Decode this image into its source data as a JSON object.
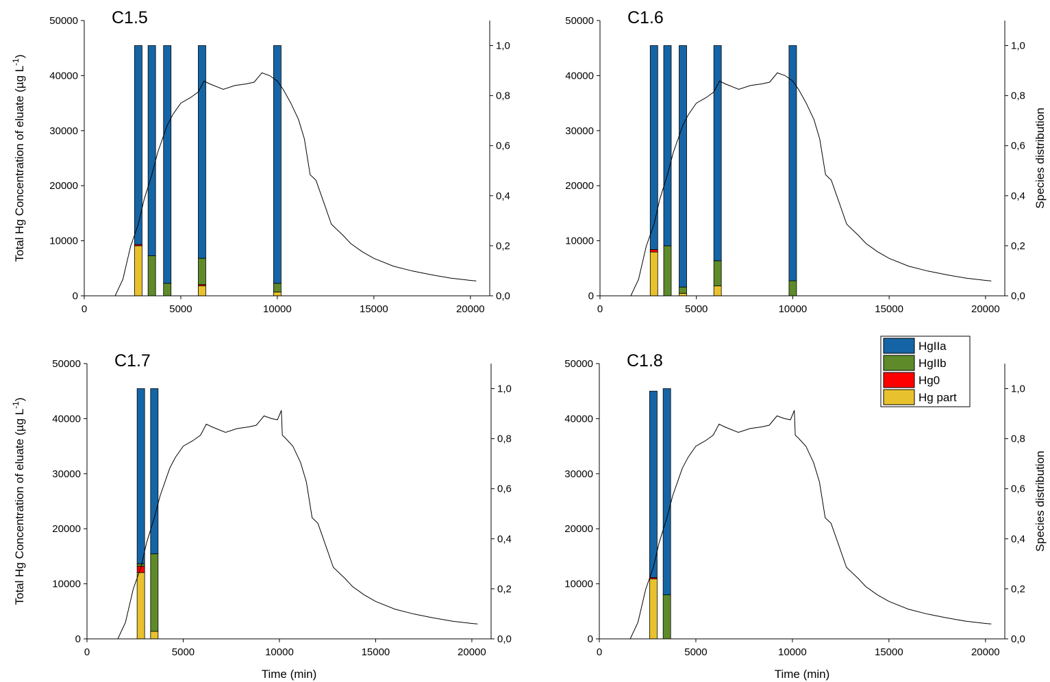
{
  "figure": {
    "legend": {
      "placement": "top-right of lower-right panel",
      "items": [
        {
          "label": "HgIIa",
          "color": "#1565A6"
        },
        {
          "label": "HgIIb",
          "color": "#5E8A2A"
        },
        {
          "label": "Hg0",
          "color": "#FF0000"
        },
        {
          "label": "Hg part",
          "color": "#E8C12E"
        }
      ]
    }
  },
  "chart_data": [
    {
      "type": "bar+line",
      "title": "C1.5",
      "xlabel": "",
      "ylabel": "Total Hg Concentration of eluate (µg L-1)",
      "ylabel_right": "",
      "show_left_label": true,
      "show_right_label": false,
      "show_xlabel": false,
      "xlim": [
        0,
        21000
      ],
      "ylim": [
        0,
        50000
      ],
      "y2lim": [
        0,
        1.1
      ],
      "x_ticks": [
        0,
        5000,
        10000,
        15000,
        20000
      ],
      "y_ticks": [
        0,
        10000,
        20000,
        30000,
        40000,
        50000
      ],
      "y2_ticks": [
        "0,0",
        "0,2",
        "0,4",
        "0,6",
        "0,8",
        "1,0"
      ],
      "line": {
        "x": [
          1600,
          2000,
          2400,
          2800,
          3100,
          3500,
          3800,
          4300,
          4600,
          5000,
          5500,
          5900,
          6200,
          6500,
          7200,
          7800,
          8400,
          8800,
          9200,
          9600,
          10000,
          10100,
          10300,
          10700,
          11100,
          11400,
          11700,
          12000,
          12400,
          12800,
          13400,
          13800,
          14400,
          15000,
          16000,
          17000,
          18000,
          19000,
          20000,
          20300
        ],
        "y": [
          0,
          3000,
          9000,
          13000,
          17500,
          22000,
          26000,
          31000,
          33000,
          35000,
          36000,
          37000,
          39000,
          38500,
          37500,
          38200,
          38500,
          38800,
          40500,
          40000,
          39000,
          38500,
          37500,
          35000,
          32000,
          28500,
          22000,
          21000,
          17000,
          13000,
          11000,
          9500,
          8000,
          6800,
          5400,
          4500,
          3800,
          3200,
          2800,
          2700
        ]
      },
      "bars": [
        {
          "x": 2800,
          "HgIIa": 0.795,
          "HgIIb": 0.0,
          "Hg0": 0.005,
          "Hg_part": 0.2
        },
        {
          "x": 3500,
          "HgIIa": 0.84,
          "HgIIb": 0.16,
          "Hg0": 0.0,
          "Hg_part": 0.0
        },
        {
          "x": 4300,
          "HgIIa": 0.95,
          "HgIIb": 0.05,
          "Hg0": 0.0,
          "Hg_part": 0.0
        },
        {
          "x": 6100,
          "HgIIa": 0.85,
          "HgIIb": 0.105,
          "Hg0": 0.005,
          "Hg_part": 0.04
        },
        {
          "x": 10000,
          "HgIIa": 0.95,
          "HgIIb": 0.035,
          "Hg0": 0.0,
          "Hg_part": 0.015
        }
      ]
    },
    {
      "type": "bar+line",
      "title": "C1.6",
      "xlabel": "",
      "ylabel": "",
      "ylabel_right": "Species distribution",
      "show_left_label": false,
      "show_right_label": true,
      "show_xlabel": false,
      "xlim": [
        0,
        21000
      ],
      "ylim": [
        0,
        50000
      ],
      "y2lim": [
        0,
        1.1
      ],
      "x_ticks": [
        0,
        5000,
        10000,
        15000,
        20000
      ],
      "y_ticks": [
        0,
        10000,
        20000,
        30000,
        40000,
        50000
      ],
      "y2_ticks": [
        "0,0",
        "0,2",
        "0,4",
        "0,6",
        "0,8",
        "1,0"
      ],
      "line": {
        "x": [
          1600,
          2000,
          2400,
          2800,
          3100,
          3500,
          3800,
          4300,
          4600,
          5000,
          5500,
          5900,
          6200,
          6500,
          7200,
          7800,
          8400,
          8800,
          9200,
          9600,
          10000,
          10100,
          10300,
          10700,
          11100,
          11400,
          11700,
          12000,
          12400,
          12800,
          13400,
          13800,
          14400,
          15000,
          16000,
          17000,
          18000,
          19000,
          20000,
          20300
        ],
        "y": [
          0,
          3000,
          9000,
          13000,
          17500,
          22000,
          26000,
          31000,
          33000,
          35000,
          36000,
          37000,
          39000,
          38500,
          37500,
          38200,
          38500,
          38800,
          40500,
          40000,
          39000,
          38500,
          37500,
          35000,
          32000,
          28500,
          22000,
          21000,
          17000,
          13000,
          11000,
          9500,
          8000,
          6800,
          5400,
          4500,
          3800,
          3200,
          2800,
          2700
        ]
      },
      "bars": [
        {
          "x": 2800,
          "HgIIa": 0.815,
          "HgIIb": 0.0,
          "Hg0": 0.01,
          "Hg_part": 0.175
        },
        {
          "x": 3500,
          "HgIIa": 0.8,
          "HgIIb": 0.2,
          "Hg0": 0.0,
          "Hg_part": 0.0
        },
        {
          "x": 4300,
          "HgIIa": 0.965,
          "HgIIb": 0.025,
          "Hg0": 0.0,
          "Hg_part": 0.01
        },
        {
          "x": 6100,
          "HgIIa": 0.86,
          "HgIIb": 0.1,
          "Hg0": 0.0,
          "Hg_part": 0.04
        },
        {
          "x": 10000,
          "HgIIa": 0.94,
          "HgIIb": 0.06,
          "Hg0": 0.0,
          "Hg_part": 0.0
        }
      ]
    },
    {
      "type": "bar+line",
      "title": "C1.7",
      "xlabel": "Time (min)",
      "ylabel": "Total Hg Concentration of eluate (µg L-1)",
      "ylabel_right": "",
      "show_left_label": true,
      "show_right_label": false,
      "show_xlabel": true,
      "xlim": [
        0,
        21000
      ],
      "ylim": [
        0,
        50000
      ],
      "y2lim": [
        0,
        1.1
      ],
      "x_ticks": [
        0,
        5000,
        10000,
        15000,
        20000
      ],
      "y_ticks": [
        0,
        10000,
        20000,
        30000,
        40000,
        50000
      ],
      "y2_ticks": [
        "0,0",
        "0,2",
        "0,4",
        "0,6",
        "0,8",
        "1,0"
      ],
      "line": {
        "x": [
          1600,
          2000,
          2400,
          2800,
          3100,
          3500,
          3800,
          4300,
          4600,
          5000,
          5500,
          5900,
          6200,
          6500,
          7200,
          7800,
          8400,
          8800,
          9200,
          9600,
          9900,
          10100,
          10150,
          10300,
          10700,
          11100,
          11400,
          11700,
          12000,
          12400,
          12800,
          13400,
          13800,
          14400,
          15000,
          16000,
          17000,
          18000,
          19000,
          20000,
          20300
        ],
        "y": [
          0,
          3000,
          9000,
          13000,
          17500,
          22000,
          26000,
          31000,
          33000,
          35000,
          36000,
          37000,
          39000,
          38500,
          37500,
          38200,
          38500,
          38800,
          40500,
          40000,
          39800,
          41500,
          37000,
          36500,
          35000,
          32000,
          28500,
          22000,
          21000,
          17000,
          13000,
          11000,
          9500,
          8000,
          6800,
          5400,
          4500,
          3800,
          3200,
          2800,
          2700
        ]
      },
      "bars": [
        {
          "x": 2800,
          "HgIIa": 0.7,
          "HgIIb": 0.01,
          "Hg0": 0.025,
          "Hg_part": 0.265
        },
        {
          "x": 3500,
          "HgIIa": 0.66,
          "HgIIb": 0.31,
          "Hg0": 0.0,
          "Hg_part": 0.03
        }
      ]
    },
    {
      "type": "bar+line",
      "title": "C1.8",
      "xlabel": "Time (min)",
      "ylabel": "",
      "ylabel_right": "Species distribution",
      "show_left_label": false,
      "show_right_label": true,
      "show_xlabel": true,
      "xlim": [
        0,
        21000
      ],
      "ylim": [
        0,
        50000
      ],
      "y2lim": [
        0,
        1.1
      ],
      "x_ticks": [
        0,
        5000,
        10000,
        15000,
        20000
      ],
      "y_ticks": [
        0,
        10000,
        20000,
        30000,
        40000,
        50000
      ],
      "y2_ticks": [
        "0,0",
        "0,2",
        "0,4",
        "0,6",
        "0,8",
        "1,0"
      ],
      "line": {
        "x": [
          1600,
          2000,
          2400,
          2800,
          3100,
          3500,
          3800,
          4300,
          4600,
          5000,
          5500,
          5900,
          6200,
          6500,
          7200,
          7800,
          8400,
          8800,
          9200,
          9600,
          9900,
          10100,
          10150,
          10300,
          10700,
          11100,
          11400,
          11700,
          12000,
          12400,
          12800,
          13400,
          13800,
          14400,
          15000,
          16000,
          17000,
          18000,
          19000,
          20000,
          20300
        ],
        "y": [
          0,
          3000,
          9000,
          13000,
          17500,
          22000,
          26000,
          31000,
          33000,
          35000,
          36000,
          37000,
          39000,
          38500,
          37500,
          38200,
          38500,
          38800,
          40500,
          40000,
          39800,
          41500,
          37000,
          36500,
          35000,
          32000,
          28500,
          22000,
          21000,
          17000,
          13000,
          11000,
          9500,
          8000,
          6800,
          5400,
          4500,
          3800,
          3200,
          2800,
          2700
        ]
      },
      "bars": [
        {
          "x": 2800,
          "HgIIa": 0.745,
          "HgIIb": 0.0,
          "Hg0": 0.005,
          "Hg_part": 0.24
        },
        {
          "x": 3500,
          "HgIIa": 0.824,
          "HgIIb": 0.176,
          "Hg0": 0.0,
          "Hg_part": 0.0
        }
      ]
    }
  ]
}
